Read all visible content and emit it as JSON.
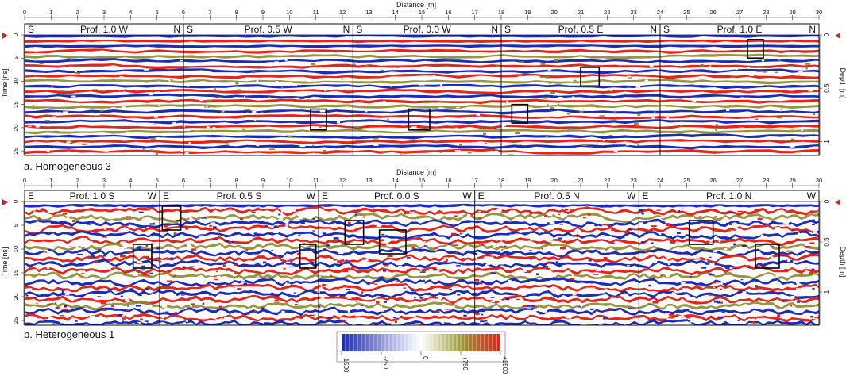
{
  "chart_data": [
    {
      "type": "heatmap",
      "caption": "a. Homogeneous 3",
      "xlabel": "Distance [m]",
      "ylabel_left": "Time [ns]",
      "ylabel_right": "Depth [m]",
      "xlim": [
        0,
        30
      ],
      "xticks": [
        0,
        1,
        2,
        3,
        4,
        5,
        6,
        7,
        8,
        9,
        10,
        11,
        12,
        13,
        14,
        15,
        16,
        17,
        18,
        19,
        20,
        21,
        22,
        23,
        24,
        25,
        26,
        27,
        28,
        29,
        30
      ],
      "time_ticks": [
        0,
        5,
        10,
        15,
        20,
        25
      ],
      "depth_ticks": [
        {
          "label": "0",
          "time_ns": 0
        },
        {
          "label": "0.5",
          "time_ns": 11.5
        },
        {
          "label": "1",
          "time_ns": 23
        }
      ],
      "profiles": [
        {
          "title": "Prof. 1.0 W",
          "left": "S",
          "right": "N",
          "x_start": 0,
          "x_end": 6
        },
        {
          "title": "Prof. 0.5 W",
          "left": "S",
          "right": "N",
          "x_start": 6,
          "x_end": 12.4
        },
        {
          "title": "Prof. 0.0 W",
          "left": "S",
          "right": "N",
          "x_start": 12.4,
          "x_end": 18
        },
        {
          "title": "Prof. 0.5 E",
          "left": "S",
          "right": "N",
          "x_start": 18,
          "x_end": 24
        },
        {
          "title": "Prof. 1.0 E",
          "left": "S",
          "right": "N",
          "x_start": 24,
          "x_end": 30
        }
      ],
      "marked_anomalies": [
        {
          "x": [
            10.8,
            11.4
          ],
          "t_ns": [
            16,
            20.5
          ]
        },
        {
          "x": [
            14.5,
            15.3
          ],
          "t_ns": [
            16,
            20.5
          ]
        },
        {
          "x": [
            18.4,
            19.0
          ],
          "t_ns": [
            15,
            19
          ]
        },
        {
          "x": [
            21.0,
            21.7
          ],
          "t_ns": [
            7,
            11
          ]
        },
        {
          "x": [
            27.3,
            27.9
          ],
          "t_ns": [
            1,
            5
          ]
        }
      ]
    },
    {
      "type": "heatmap",
      "caption": "b. Heterogeneous 1",
      "xlabel": "Distance [m]",
      "ylabel_left": "Time [ns]",
      "ylabel_right": "Depth [m]",
      "xlim": [
        0,
        30
      ],
      "xticks": [
        0,
        1,
        2,
        3,
        4,
        5,
        6,
        7,
        8,
        9,
        10,
        11,
        12,
        13,
        14,
        15,
        16,
        17,
        18,
        19,
        20,
        21,
        22,
        23,
        24,
        25,
        26,
        27,
        28,
        29,
        30
      ],
      "time_ticks": [
        0,
        5,
        10,
        15,
        20,
        25
      ],
      "depth_ticks": [
        {
          "label": "0",
          "time_ns": 0
        },
        {
          "label": "0.5",
          "time_ns": 8.5
        },
        {
          "label": "1",
          "time_ns": 19
        }
      ],
      "profiles": [
        {
          "title": "Prof. 1.0 S",
          "left": "E",
          "right": "W",
          "x_start": 0,
          "x_end": 5.1
        },
        {
          "title": "Prof. 0.5 S",
          "left": "E",
          "right": "W",
          "x_start": 5.1,
          "x_end": 11.1
        },
        {
          "title": "Prof. 0.0 S",
          "left": "E",
          "right": "W",
          "x_start": 11.1,
          "x_end": 17
        },
        {
          "title": "Prof. 0.5 N",
          "left": "E",
          "right": "W",
          "x_start": 17,
          "x_end": 23.2
        },
        {
          "title": "Prof. 1.0 N",
          "left": "E",
          "right": "W",
          "x_start": 23.2,
          "x_end": 30
        }
      ],
      "marked_anomalies": [
        {
          "x": [
            4.1,
            4.8
          ],
          "t_ns": [
            9,
            14
          ]
        },
        {
          "x": [
            5.2,
            5.9
          ],
          "t_ns": [
            1,
            6
          ]
        },
        {
          "x": [
            10.4,
            11.0
          ],
          "t_ns": [
            9,
            14
          ]
        },
        {
          "x": [
            12.1,
            12.8
          ],
          "t_ns": [
            4,
            9
          ]
        },
        {
          "x": [
            13.4,
            14.4
          ],
          "t_ns": [
            6,
            11
          ]
        },
        {
          "x": [
            25.1,
            26.0
          ],
          "t_ns": [
            4,
            9
          ]
        },
        {
          "x": [
            27.6,
            28.5
          ],
          "t_ns": [
            9,
            14
          ]
        }
      ]
    }
  ],
  "colorbar": {
    "ticks": [
      "-1500",
      "-750",
      "0",
      "+750",
      "+1500"
    ],
    "values": [
      -1500,
      -750,
      0,
      750,
      1500
    ],
    "colors": {
      "negative": "#1a2bb5",
      "zero": "#ffffff",
      "mid_positive": "#8a8a2a",
      "positive": "#e0221a"
    }
  }
}
